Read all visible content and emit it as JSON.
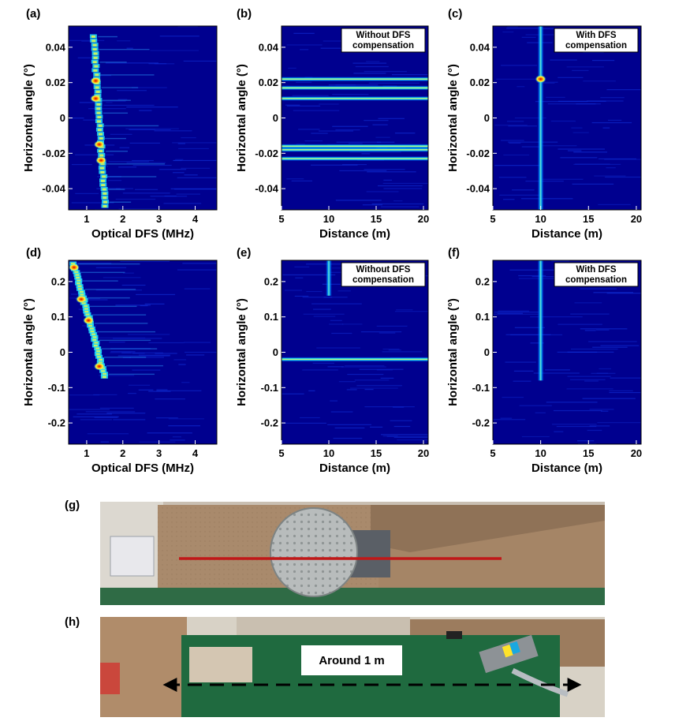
{
  "colors": {
    "background": "#00008f",
    "hot": "#ff2000",
    "marker_line": "#c01818",
    "arrow": "#000000"
  },
  "chart_data": [
    {
      "panel": "(a)",
      "type": "heatmap",
      "xlabel": "Optical DFS (MHz)",
      "ylabel": "Horizontal angle (°)",
      "xlim": [
        0.5,
        4.6
      ],
      "ylim": [
        -0.052,
        0.052
      ],
      "xticks": [
        1,
        2,
        3,
        4
      ],
      "yticks": [
        -0.04,
        -0.02,
        0,
        0.02,
        0.04
      ],
      "xtick_labels": [
        "1",
        "2",
        "3",
        "4"
      ],
      "ytick_labels": [
        "-0.04",
        "-0.02",
        "0",
        "0.02",
        "0.04"
      ],
      "annotation": "",
      "bright_feature": {
        "kind": "ridge",
        "x_start": 1.18,
        "y_start": 0.046,
        "x_end": 1.5,
        "y_end": -0.05
      },
      "hotspots": [
        {
          "x": 1.25,
          "y": 0.021
        },
        {
          "x": 1.25,
          "y": 0.011
        },
        {
          "x": 1.35,
          "y": -0.015
        },
        {
          "x": 1.4,
          "y": -0.024
        }
      ]
    },
    {
      "panel": "(b)",
      "type": "heatmap",
      "xlabel": "Distance (m)",
      "ylabel": "Horizontal angle (°)",
      "xlim": [
        5,
        20.5
      ],
      "ylim": [
        -0.052,
        0.052
      ],
      "xticks": [
        5,
        10,
        15,
        20
      ],
      "yticks": [
        -0.04,
        -0.02,
        0,
        0.02,
        0.04
      ],
      "xtick_labels": [
        "5",
        "10",
        "15",
        "20"
      ],
      "ytick_labels": [
        "-0.04",
        "-0.02",
        "0",
        "0.02",
        "0.04"
      ],
      "annotation": "Without DFS compensation",
      "annotation_lines": [
        "Without DFS",
        "compensation"
      ],
      "bright_rows": [
        0.022,
        0.017,
        0.011,
        -0.016,
        -0.018,
        -0.023
      ],
      "bright_column_x": null
    },
    {
      "panel": "(c)",
      "type": "heatmap",
      "xlabel": "Distance (m)",
      "ylabel": "Horizontal angle (°)",
      "xlim": [
        5,
        20.5
      ],
      "ylim": [
        -0.052,
        0.052
      ],
      "xticks": [
        5,
        10,
        15,
        20
      ],
      "yticks": [
        -0.04,
        -0.02,
        0,
        0.02,
        0.04
      ],
      "xtick_labels": [
        "5",
        "10",
        "15",
        "20"
      ],
      "ytick_labels": [
        "-0.04",
        "-0.02",
        "0",
        "0.02",
        "0.04"
      ],
      "annotation": "With DFS compensation",
      "annotation_lines": [
        "With DFS",
        "compensation"
      ],
      "bright_column_x": 10.0,
      "hotspots": [
        {
          "x": 10.0,
          "y": 0.022
        }
      ]
    },
    {
      "panel": "(d)",
      "type": "heatmap",
      "xlabel": "Optical DFS (MHz)",
      "ylabel": "Horizontal angle (°)",
      "xlim": [
        0.5,
        4.6
      ],
      "ylim": [
        -0.26,
        0.26
      ],
      "xticks": [
        1,
        2,
        3,
        4
      ],
      "yticks": [
        -0.2,
        -0.1,
        0,
        0.1,
        0.2
      ],
      "xtick_labels": [
        "1",
        "2",
        "3",
        "4"
      ],
      "ytick_labels": [
        "-0.2",
        "-0.1",
        "0",
        "0.1",
        "0.2"
      ],
      "annotation": "",
      "bright_feature": {
        "kind": "ridge",
        "x_start": 0.62,
        "y_start": 0.25,
        "x_end": 1.5,
        "y_end": -0.07
      },
      "hotspots": [
        {
          "x": 0.65,
          "y": 0.24
        },
        {
          "x": 0.85,
          "y": 0.15
        },
        {
          "x": 1.05,
          "y": 0.09
        },
        {
          "x": 1.35,
          "y": -0.04
        }
      ]
    },
    {
      "panel": "(e)",
      "type": "heatmap",
      "xlabel": "Distance (m)",
      "ylabel": "Horizontal angle (°)",
      "xlim": [
        5,
        20.5
      ],
      "ylim": [
        -0.26,
        0.26
      ],
      "xticks": [
        5,
        10,
        15,
        20
      ],
      "yticks": [
        -0.2,
        -0.1,
        0,
        0.1,
        0.2
      ],
      "xtick_labels": [
        "5",
        "10",
        "15",
        "20"
      ],
      "ytick_labels": [
        "-0.2",
        "-0.1",
        "0",
        "0.1",
        "0.2"
      ],
      "annotation": "Without DFS compensation",
      "annotation_lines": [
        "Without DFS",
        "compensation"
      ],
      "bright_rows": [
        -0.02
      ],
      "bright_column_x": 10.0,
      "bright_column_yrange": [
        0.16,
        0.26
      ]
    },
    {
      "panel": "(f)",
      "type": "heatmap",
      "xlabel": "Distance (m)",
      "ylabel": "Horizontal angle (°)",
      "xlim": [
        5,
        20.5
      ],
      "ylim": [
        -0.26,
        0.26
      ],
      "xticks": [
        5,
        10,
        15,
        20
      ],
      "yticks": [
        -0.2,
        -0.1,
        0,
        0.1,
        0.2
      ],
      "xtick_labels": [
        "5",
        "10",
        "15",
        "20"
      ],
      "ytick_labels": [
        "-0.2",
        "-0.1",
        "0",
        "0.1",
        "0.2"
      ],
      "annotation": "With DFS compensation",
      "annotation_lines": [
        "With DFS",
        "compensation"
      ],
      "bright_column_x": 10.0,
      "bright_column_yrange": [
        -0.08,
        0.26
      ]
    }
  ],
  "photos": [
    {
      "panel": "(g)",
      "caption": "",
      "subject": "circular target plate on cardboard with red scan line"
    },
    {
      "panel": "(h)",
      "caption": "Around 1 m",
      "subject": "target moving along green mat with double-headed dashed arrow"
    }
  ]
}
